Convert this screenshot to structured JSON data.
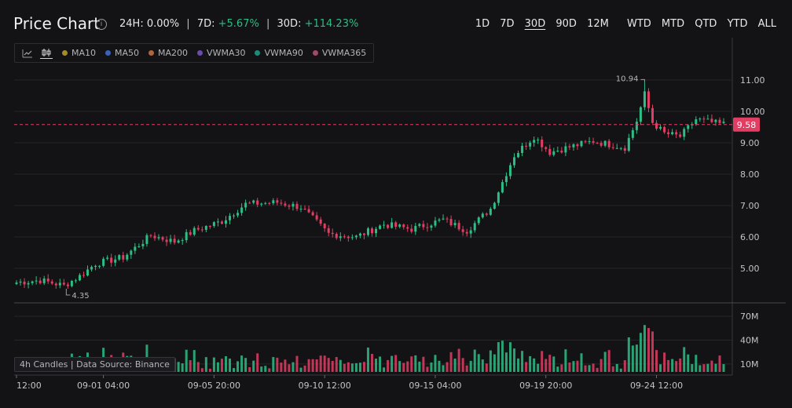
{
  "header": {
    "title": "Price Chart",
    "info_icon": "info-icon",
    "stats": {
      "h24_label": "24H:",
      "h24_value": "0.00%",
      "d7_label": "7D:",
      "d7_value": "+5.67%",
      "d30_label": "30D:",
      "d30_value": "+114.23%",
      "separator": "|"
    },
    "ranges": [
      "1D",
      "7D",
      "30D",
      "90D",
      "12M",
      "WTD",
      "MTD",
      "QTD",
      "YTD",
      "ALL"
    ],
    "active_range": "30D"
  },
  "toolbar": {
    "icons": [
      "line-chart-icon",
      "candlestick-icon"
    ],
    "indicators": [
      {
        "label": "MA10",
        "color": "#a68b2a"
      },
      {
        "label": "MA50",
        "color": "#3b62b8"
      },
      {
        "label": "MA200",
        "color": "#b0653a"
      },
      {
        "label": "VWMA30",
        "color": "#6a4bb0"
      },
      {
        "label": "VWMA90",
        "color": "#1f8a7a"
      },
      {
        "label": "VWMA365",
        "color": "#a04a68"
      }
    ]
  },
  "source_label": "4h Candles | Data Source: Binance",
  "colors": {
    "up": "#2ebd85",
    "down": "#e23d63",
    "grid": "#26262b",
    "axis_text": "#c4c4c8",
    "price_line": "#e23d63"
  },
  "chart_data": {
    "type": "candlestick",
    "interval": "4h",
    "current_price": 9.58,
    "current_price_label": "9.58",
    "high_annotation": {
      "label": "10.94",
      "value": 10.94
    },
    "low_annotation": {
      "label": "4.35",
      "value": 4.35
    },
    "price_ticks": [
      5.0,
      6.0,
      7.0,
      8.0,
      9.0,
      10.0,
      11.0
    ],
    "price_tick_labels": [
      "5.00",
      "6.00",
      "7.00",
      "8.00",
      "9.00",
      "10.00",
      "11.00"
    ],
    "ylim": [
      3.9,
      12.2
    ],
    "volume_ticks": [
      10,
      40,
      70
    ],
    "volume_tick_labels": [
      "10M",
      "40M",
      "70M"
    ],
    "volume_ylim": [
      0,
      80
    ],
    "x_tick_labels": [
      "12:00",
      "09-01 04:00",
      "09-05 20:00",
      "09-10 12:00",
      "09-15 04:00",
      "09-19 20:00",
      "09-24 12:00"
    ],
    "x_tick_index": [
      0,
      22,
      50,
      78,
      106,
      134,
      162
    ],
    "anchors": [
      [
        0,
        4.55
      ],
      [
        6,
        4.62
      ],
      [
        12,
        4.45
      ],
      [
        16,
        4.75
      ],
      [
        20,
        5.15
      ],
      [
        27,
        5.35
      ],
      [
        34,
        6.05
      ],
      [
        40,
        5.85
      ],
      [
        45,
        6.2
      ],
      [
        52,
        6.5
      ],
      [
        58,
        7.05
      ],
      [
        66,
        7.1
      ],
      [
        72,
        6.95
      ],
      [
        79,
        6.1
      ],
      [
        86,
        6.0
      ],
      [
        93,
        6.4
      ],
      [
        100,
        6.25
      ],
      [
        108,
        6.55
      ],
      [
        114,
        6.2
      ],
      [
        120,
        6.9
      ],
      [
        126,
        8.6
      ],
      [
        131,
        9.2
      ],
      [
        135,
        8.7
      ],
      [
        141,
        8.9
      ],
      [
        146,
        9.05
      ],
      [
        154,
        8.85
      ],
      [
        157,
        9.7
      ],
      [
        159,
        10.55
      ],
      [
        161,
        9.65
      ],
      [
        164,
        9.3
      ],
      [
        168,
        9.2
      ],
      [
        172,
        9.75
      ],
      [
        178,
        9.6
      ]
    ],
    "volume_base_M": 9
  }
}
